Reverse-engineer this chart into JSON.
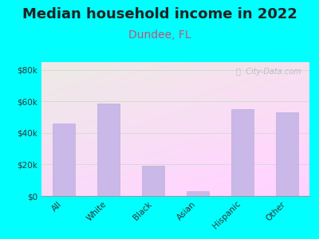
{
  "title": "Median household income in 2022",
  "subtitle": "Dundee, FL",
  "categories": [
    "All",
    "White",
    "Black",
    "Asian",
    "Hispanic",
    "Other"
  ],
  "values": [
    46000,
    58500,
    19000,
    3000,
    55000,
    53000
  ],
  "bar_color": "#c9b8e8",
  "bar_edge_color": "#b8a8d8",
  "background_outer": "#00FFFF",
  "bg_color_topleft": "#d8f0d0",
  "bg_color_topright": "#f0f8ee",
  "bg_color_bottomright": "#fdfdf8",
  "title_fontsize": 13,
  "title_color": "#222222",
  "subtitle_fontsize": 10,
  "subtitle_color": "#bb5577",
  "yticks": [
    0,
    20000,
    40000,
    60000,
    80000
  ],
  "ytick_labels": [
    "$0",
    "$20k",
    "$40k",
    "$60k",
    "$80k"
  ],
  "ylim": [
    0,
    85000
  ],
  "watermark": "ⓘ  City-Data.com",
  "grid_color": "#ccddcc"
}
